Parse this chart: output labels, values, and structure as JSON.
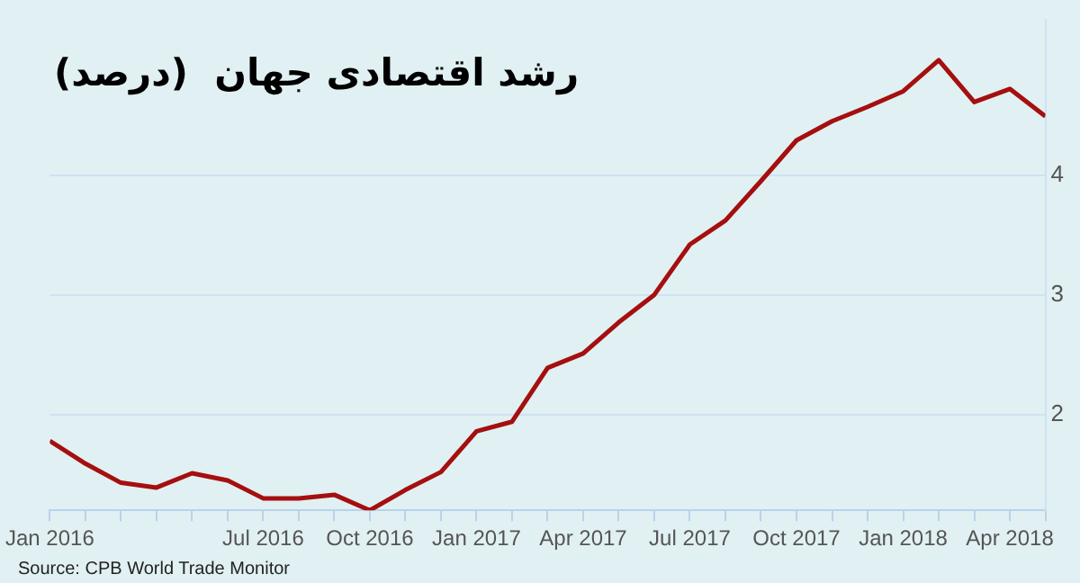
{
  "chart_data": {
    "type": "line",
    "title": "رشد اقتصادی جهان  (درصد)",
    "annotations": [
      "Source: CPB World Trade Monitor"
    ],
    "x": [
      "2016-01",
      "2016-02",
      "2016-03",
      "2016-04",
      "2016-05",
      "2016-06",
      "2016-07",
      "2016-08",
      "2016-09",
      "2016-10",
      "2016-11",
      "2016-12",
      "2017-01",
      "2017-02",
      "2017-03",
      "2017-04",
      "2017-05",
      "2017-06",
      "2017-07",
      "2017-08",
      "2017-09",
      "2017-10",
      "2017-11",
      "2017-12",
      "2018-01",
      "2018-02",
      "2018-03",
      "2018-04",
      "2018-05"
    ],
    "series": [
      {
        "color": "#a50f0f",
        "values": [
          1.78,
          1.59,
          1.43,
          1.39,
          1.51,
          1.45,
          1.3,
          1.3,
          1.33,
          1.2,
          1.37,
          1.52,
          1.86,
          1.94,
          2.39,
          2.51,
          2.77,
          3.0,
          3.42,
          3.62,
          3.95,
          4.29,
          4.45,
          4.57,
          4.7,
          4.96,
          4.61,
          4.72,
          4.49
        ]
      }
    ],
    "xlim": [
      "2016-01",
      "2018-05"
    ],
    "xticks": [
      {
        "value": "2016-01",
        "label": "Jan 2016"
      },
      {
        "value": "2016-02",
        "label": null
      },
      {
        "value": "2016-03",
        "label": null
      },
      {
        "value": "2016-04",
        "label": null
      },
      {
        "value": "2016-05",
        "label": null
      },
      {
        "value": "2016-06",
        "label": null
      },
      {
        "value": "2016-07",
        "label": "Jul 2016"
      },
      {
        "value": "2016-08",
        "label": null
      },
      {
        "value": "2016-09",
        "label": null
      },
      {
        "value": "2016-10",
        "label": "Oct 2016"
      },
      {
        "value": "2016-11",
        "label": null
      },
      {
        "value": "2016-12",
        "label": null
      },
      {
        "value": "2017-01",
        "label": "Jan 2017"
      },
      {
        "value": "2017-02",
        "label": null
      },
      {
        "value": "2017-03",
        "label": null
      },
      {
        "value": "2017-04",
        "label": "Apr 2017"
      },
      {
        "value": "2017-05",
        "label": null
      },
      {
        "value": "2017-06",
        "label": null
      },
      {
        "value": "2017-07",
        "label": "Jul 2017"
      },
      {
        "value": "2017-08",
        "label": null
      },
      {
        "value": "2017-09",
        "label": null
      },
      {
        "value": "2017-10",
        "label": "Oct 2017"
      },
      {
        "value": "2017-11",
        "label": null
      },
      {
        "value": "2017-12",
        "label": null
      },
      {
        "value": "2018-01",
        "label": "Jan 2018"
      },
      {
        "value": "2018-02",
        "label": null
      },
      {
        "value": "2018-03",
        "label": null
      },
      {
        "value": "2018-04",
        "label": "Apr 2018"
      },
      {
        "value": "2018-05",
        "label": null
      }
    ],
    "ylim": [
      1.2,
      5.3
    ],
    "yticks": [
      2,
      3,
      4
    ],
    "grid": "y",
    "marker": "none",
    "line_style": "solid",
    "legend": false
  }
}
